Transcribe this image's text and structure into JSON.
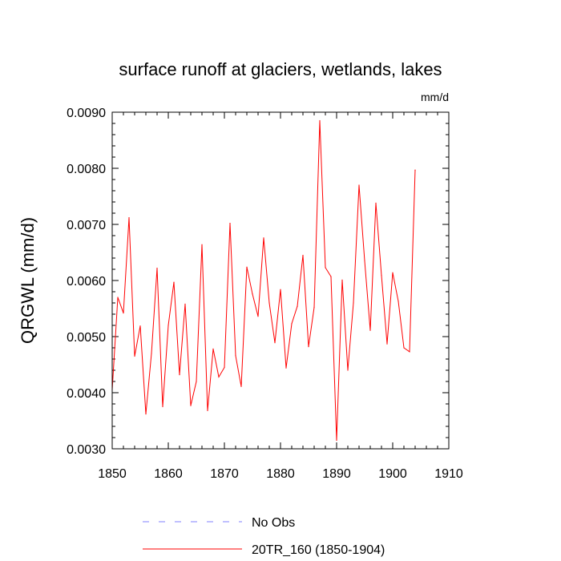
{
  "chart_data": {
    "type": "line",
    "title": "surface runoff at glaciers, wetlands, lakes",
    "units": "mm/d",
    "ylabel": "QRGWL  (mm/d)",
    "xlabel": "",
    "xlim": [
      1850,
      1910
    ],
    "ylim": [
      0.003,
      0.009
    ],
    "x_ticks": [
      1850,
      1860,
      1870,
      1880,
      1890,
      1900,
      1910
    ],
    "x_tick_labels": [
      "1850",
      "1860",
      "1870",
      "1880",
      "1890",
      "1900",
      "1910"
    ],
    "y_ticks": [
      0.003,
      0.004,
      0.005,
      0.006,
      0.007,
      0.008,
      0.009
    ],
    "y_tick_labels": [
      "0.0030",
      "0.0040",
      "0.0050",
      "0.0060",
      "0.0070",
      "0.0080",
      "0.0090"
    ],
    "grid": false,
    "legend_position": "bottom",
    "series": [
      {
        "name": "No Obs",
        "color": "#8080ff",
        "style": "dashed",
        "x": [],
        "values": []
      },
      {
        "name": "20TR_160 (1850-1904)",
        "color": "#ff0000",
        "style": "solid",
        "x": [
          1850,
          1851,
          1852,
          1853,
          1854,
          1855,
          1856,
          1857,
          1858,
          1859,
          1860,
          1861,
          1862,
          1863,
          1864,
          1865,
          1866,
          1867,
          1868,
          1869,
          1870,
          1871,
          1872,
          1873,
          1874,
          1875,
          1876,
          1877,
          1878,
          1879,
          1880,
          1881,
          1882,
          1883,
          1884,
          1885,
          1886,
          1887,
          1888,
          1889,
          1890,
          1891,
          1892,
          1893,
          1894,
          1895,
          1896,
          1897,
          1898,
          1899,
          1900,
          1901,
          1902,
          1903,
          1904
        ],
        "values": [
          0.00405,
          0.0057,
          0.00542,
          0.00712,
          0.00465,
          0.00519,
          0.00362,
          0.0047,
          0.00622,
          0.00375,
          0.0052,
          0.00597,
          0.00432,
          0.00558,
          0.00377,
          0.0042,
          0.00664,
          0.00368,
          0.00478,
          0.00428,
          0.00445,
          0.00702,
          0.00466,
          0.00411,
          0.00624,
          0.00576,
          0.00536,
          0.00676,
          0.0056,
          0.00489,
          0.00584,
          0.00444,
          0.00523,
          0.00554,
          0.00645,
          0.00482,
          0.00552,
          0.00885,
          0.00623,
          0.00607,
          0.00315,
          0.00601,
          0.0044,
          0.0056,
          0.0077,
          0.00635,
          0.00511,
          0.00738,
          0.00609,
          0.00487,
          0.00614,
          0.00563,
          0.0048,
          0.00473,
          0.00797
        ]
      }
    ]
  }
}
